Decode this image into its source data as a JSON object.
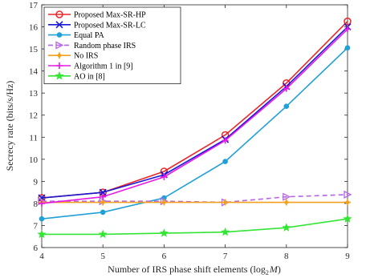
{
  "chart_data": {
    "type": "line",
    "xlabel": "Number of IRS phase shift elements",
    "xlabel_math": "(log",
    "xlabel_sub": "2",
    "xlabel_var": "M",
    "xlabel_close": ")",
    "ylabel": "Secrecy rate (bits/s/Hz)",
    "xlim": [
      4,
      9
    ],
    "ylim": [
      6,
      17
    ],
    "x_ticks": [
      "4",
      "5",
      "6",
      "7",
      "8",
      "9"
    ],
    "y_ticks": [
      "6",
      "7",
      "8",
      "9",
      "10",
      "11",
      "12",
      "13",
      "14",
      "15",
      "16",
      "17"
    ],
    "legend_position": "top-left",
    "grid": false,
    "x": [
      4,
      5,
      6,
      7,
      8,
      9
    ],
    "series": [
      {
        "name": "Proposed Max-SR-HP",
        "color": "#e8262a",
        "marker": "circle",
        "dash": "solid",
        "values": [
          8.25,
          8.5,
          9.45,
          11.1,
          13.45,
          16.25
        ]
      },
      {
        "name": "Proposed Max-SR-LC",
        "color": "#1a1ad4",
        "marker": "x",
        "dash": "solid",
        "values": [
          8.25,
          8.5,
          9.3,
          10.9,
          13.3,
          16.0
        ]
      },
      {
        "name": "Equal PA",
        "color": "#1fa0d8",
        "marker": "dot",
        "dash": "solid",
        "values": [
          7.3,
          7.6,
          8.25,
          9.9,
          12.4,
          15.05
        ]
      },
      {
        "name": "Random phase IRS",
        "color": "#b565e8",
        "marker": "triangle-right",
        "dash": "dashed",
        "values": [
          8.1,
          8.1,
          8.1,
          8.05,
          8.3,
          8.4
        ]
      },
      {
        "name": "No IRS",
        "color": "#f2a11f",
        "marker": "plus-dot",
        "dash": "solid",
        "values": [
          8.05,
          8.05,
          8.05,
          8.05,
          8.05,
          8.05
        ]
      },
      {
        "name": "Algorithm 1 in [9]",
        "color": "#e619e6",
        "marker": "plus",
        "dash": "solid",
        "values": [
          8.0,
          8.3,
          9.2,
          10.85,
          13.2,
          15.9
        ]
      },
      {
        "name": "AO in [8]",
        "color": "#33e633",
        "marker": "star",
        "dash": "solid",
        "values": [
          6.6,
          6.6,
          6.65,
          6.7,
          6.9,
          7.3
        ]
      }
    ]
  }
}
